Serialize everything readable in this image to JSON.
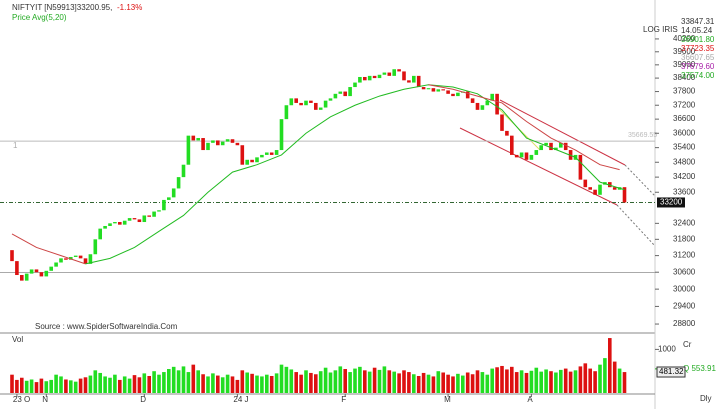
{
  "chart_data": {
    "type": "candlestick",
    "title": "NIFTYIT [N59913]33200.95,",
    "change": "-1.13%",
    "legend_label": "Price Avg(5,20)",
    "scale_label": "LOG IRIS",
    "source": "Source : www.SpiderSoftwareIndia.Com",
    "volume_label": "Vol",
    "volume_right_label": "Cr",
    "period_label": "Dly",
    "pane_number": "1",
    "log": true,
    "up_color": "#22dd22",
    "down_color": "#dd1111",
    "ylim": [
      28600,
      41100
    ],
    "yticks": [
      40200,
      39600,
      39000,
      38400,
      37800,
      37200,
      36600,
      36000,
      35400,
      34800,
      34200,
      33600,
      32400,
      31800,
      31200,
      30600,
      30000,
      29400,
      28800
    ],
    "xticks": [
      {
        "value": 1,
        "label": "23 O"
      },
      {
        "value": 7,
        "label": "N"
      },
      {
        "value": 27,
        "label": "D"
      },
      {
        "value": 46,
        "label": "24 J"
      },
      {
        "value": 68,
        "label": "F"
      },
      {
        "value": 89,
        "label": "M"
      },
      {
        "value": 106,
        "label": "A"
      }
    ],
    "open": [
      31400,
      31000,
      30500,
      30300,
      30550,
      30700,
      30600,
      30450,
      30650,
      30800,
      30950,
      31100,
      31050,
      31150,
      31200,
      31100,
      30900,
      31250,
      31800,
      32200,
      32300,
      32400,
      32450,
      32350,
      32500,
      32600,
      32550,
      32450,
      32700,
      32650,
      32850,
      32900,
      33300,
      33400,
      33750,
      34200,
      34700,
      35900,
      35700,
      35800,
      35300,
      35600,
      35700,
      35500,
      35650,
      35750,
      35600,
      35500,
      34700,
      34900,
      34800,
      35000,
      35100,
      35200,
      35100,
      35300,
      36600,
      37200,
      37500,
      37300,
      37200,
      37400,
      37300,
      37000,
      37100,
      37400,
      37500,
      37700,
      37800,
      37600,
      38000,
      38200,
      38450,
      38300,
      38500,
      38400,
      38550,
      38650,
      38500,
      38800,
      38700,
      38300,
      38200,
      38500,
      38000,
      37900,
      37950,
      37800,
      37900,
      37850,
      37700,
      37600,
      37750,
      37800,
      37500,
      37300,
      37000,
      37200,
      37400,
      37700,
      36800,
      36100,
      35900,
      35100,
      35000,
      35200,
      34900,
      35100,
      35300,
      35500,
      35600,
      35300,
      35400,
      35600,
      35300,
      34900,
      35100,
      34100,
      33800,
      33700,
      33500,
      33900,
      34000,
      33800,
      33700,
      33800
    ],
    "close": [
      31000,
      30500,
      30300,
      30550,
      30700,
      30600,
      30450,
      30650,
      30800,
      30950,
      31100,
      31050,
      31150,
      31200,
      31100,
      30900,
      31250,
      31800,
      32200,
      32300,
      32400,
      32450,
      32350,
      32500,
      32600,
      32550,
      32450,
      32700,
      32650,
      32850,
      32900,
      33300,
      33400,
      33750,
      34200,
      34700,
      35900,
      35700,
      35800,
      35300,
      35600,
      35700,
      35500,
      35650,
      35750,
      35600,
      35500,
      34700,
      34900,
      34800,
      35000,
      35100,
      35200,
      35100,
      35300,
      36600,
      37200,
      37500,
      37300,
      37200,
      37400,
      37300,
      37000,
      37100,
      37400,
      37500,
      37700,
      37800,
      37600,
      38000,
      38200,
      38450,
      38300,
      38500,
      38400,
      38550,
      38650,
      38500,
      38800,
      38700,
      38300,
      38200,
      38500,
      38000,
      37900,
      37950,
      37800,
      37900,
      37850,
      37700,
      37600,
      37750,
      37800,
      37500,
      37300,
      37000,
      37200,
      37400,
      37700,
      36800,
      36100,
      35900,
      35100,
      35000,
      35200,
      34900,
      35100,
      35300,
      35500,
      35600,
      35300,
      35400,
      35600,
      35300,
      34900,
      35100,
      34100,
      33800,
      33700,
      33500,
      33900,
      34000,
      33800,
      33700,
      33800,
      33200.95
    ],
    "volume": [
      420,
      300,
      350,
      280,
      310,
      250,
      330,
      270,
      300,
      420,
      380,
      310,
      290,
      260,
      330,
      360,
      400,
      520,
      460,
      380,
      350,
      420,
      300,
      380,
      330,
      410,
      360,
      450,
      390,
      500,
      420,
      480,
      550,
      600,
      520,
      610,
      480,
      650,
      520,
      430,
      380,
      450,
      400,
      360,
      420,
      380,
      300,
      520,
      470,
      440,
      400,
      380,
      420,
      390,
      450,
      650,
      600,
      540,
      480,
      420,
      520,
      460,
      430,
      500,
      580,
      470,
      520,
      610,
      550,
      480,
      560,
      600,
      520,
      490,
      580,
      530,
      610,
      520,
      490,
      450,
      520,
      480,
      430,
      390,
      460,
      420,
      380,
      500,
      470,
      420,
      380,
      440,
      400,
      470,
      430,
      520,
      480,
      420,
      560,
      590,
      620,
      540,
      600,
      480,
      520,
      460,
      510,
      580,
      490,
      540,
      500,
      470,
      530,
      560,
      490,
      520,
      610,
      680,
      560,
      500,
      650,
      800,
      1260,
      720,
      560,
      480
    ],
    "volume_ylim": [
      0,
      1330
    ],
    "volume_yticks": [
      1000
    ],
    "volume_markers": [
      {
        "value": 553.91,
        "label": "Q  553.91",
        "color": "#22aa22"
      },
      {
        "value": 481.32,
        "label": "481.32",
        "color": "#000000"
      }
    ],
    "averages": [
      {
        "color": "#22bb22",
        "x": [
          15,
          20,
          25,
          30,
          35,
          40,
          45,
          50,
          55,
          60,
          65,
          70,
          75,
          80,
          85,
          90,
          95,
          100,
          105,
          110,
          115,
          120,
          125
        ],
        "values": [
          30900,
          31100,
          31500,
          32100,
          32700,
          33600,
          34400,
          34700,
          35100,
          36000,
          36700,
          37200,
          37600,
          37900,
          38100,
          38000,
          37700,
          37000,
          35800,
          35400,
          35000,
          34000,
          33700
        ]
      },
      {
        "color": "#cc4444",
        "x": [
          0,
          5,
          10,
          15,
          16,
          85,
          90,
          95,
          100,
          105,
          110,
          115,
          120,
          124
        ],
        "values": [
          32000,
          31500,
          31200,
          30900,
          null,
          38100,
          37900,
          37600,
          37300,
          36500,
          35800,
          35300,
          34700,
          34500
        ]
      }
    ],
    "levels": [
      {
        "value": 35669.55,
        "color": "#bbbbbb",
        "dash": "none"
      },
      {
        "value": 33200.95,
        "color": "#336633",
        "dash": "4 2 1 2"
      },
      {
        "value": 30590,
        "color": "#aaaaaa",
        "dash": "none"
      }
    ],
    "last_label": "33200",
    "right_labels": [
      {
        "text": "33847.31",
        "color": "#333333"
      },
      {
        "text": "14.05.24",
        "color": "#333333"
      },
      {
        "text": "36901.80",
        "color": "#22aa22"
      },
      {
        "text": "37723.35",
        "color": "#dd1111"
      },
      {
        "text": "36607.65",
        "color": "#aaaaaa"
      },
      {
        "text": "37679.60",
        "color": "#aa22aa"
      },
      {
        "text": "37574.00",
        "color": "#22aa22"
      }
    ]
  }
}
